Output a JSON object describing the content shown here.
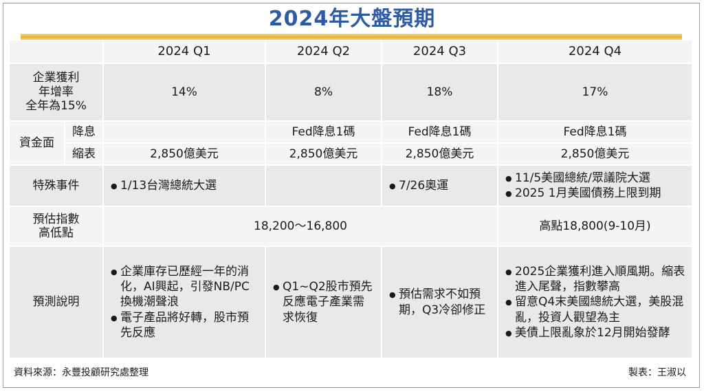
{
  "title": "2024年大盤預期",
  "headers": [
    "2024 Q1",
    "2024 Q2",
    "2024 Q3",
    "2024 Q4"
  ],
  "rows": {
    "profit": {
      "label_lines": [
        "企業獲利",
        "年增率",
        "全年為15%"
      ],
      "values": [
        "14%",
        "8%",
        "18%",
        "17%"
      ]
    },
    "funds": {
      "label": "資金面",
      "rate_cut": {
        "label": "降息",
        "values": [
          "",
          "Fed降息1碼",
          "Fed降息1碼",
          "Fed降息1碼"
        ]
      },
      "qt": {
        "label": "縮表",
        "values": [
          "2,850億美元",
          "2,850億美元",
          "2,850億美元",
          "2,850億美元"
        ]
      }
    },
    "events": {
      "label": "特殊事件",
      "q1": [
        "1/13台灣總統大選"
      ],
      "q3": [
        "7/26奧運"
      ],
      "q4": [
        "11/5美國總統/眾議院大選",
        "2025 1月美國債務上限到期"
      ]
    },
    "index": {
      "label_lines": [
        "預估指數",
        "高低點"
      ],
      "q1_q3": "18,200～16,800",
      "q4": "高點18,800(9-10月)"
    },
    "forecast": {
      "label": "預測說明",
      "q1": [
        "企業庫存已歷經一年的消化，AI興起，引發NB/PC換機潮聲浪",
        "電子產品將好轉，股市預先反應"
      ],
      "q2": [
        "Q1~Q2股市預先反應電子產業需求恢復"
      ],
      "q3": [
        "預估需求不如預期，Q3冷卻修正"
      ],
      "q4": [
        "2025企業獲利進入順風期。縮表進入尾聲，指數攀高",
        "留意Q4末美國總統大選，美股混亂，投資人觀望為主",
        "美債上限亂象於12月開始發酵"
      ]
    }
  },
  "footer": {
    "source": "資料來源：永豐投顧研究處整理",
    "maker": "製表：王淑以"
  },
  "colors": {
    "title": "#2b5aa6",
    "rule": "#e4b13a",
    "cell_dark": "#e9e9e9",
    "cell_light": "#f4f4f4"
  }
}
